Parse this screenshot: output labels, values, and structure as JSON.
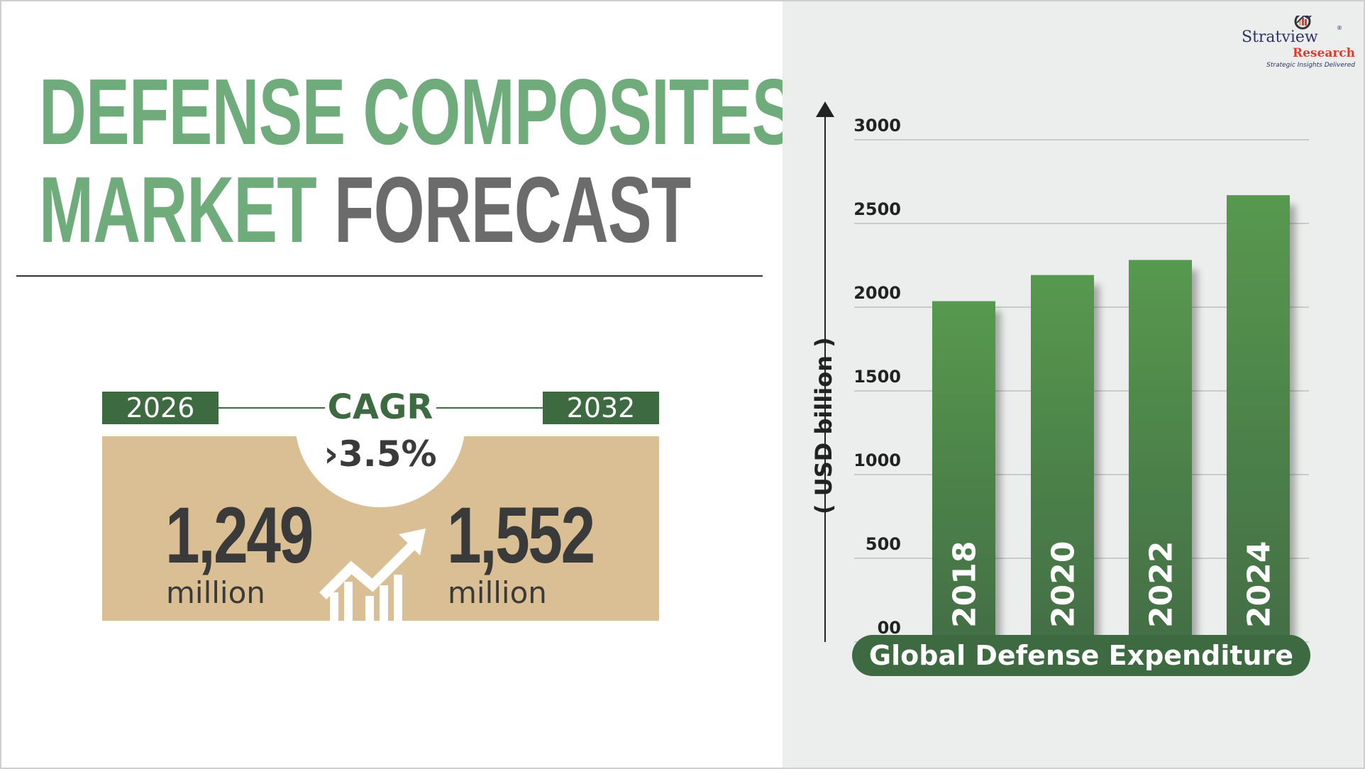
{
  "title": {
    "line1": "DEFENSE COMPOSITES",
    "line2_green": "MARKET",
    "line2_gray": "FORECAST"
  },
  "forecast": {
    "start_year": "2026",
    "end_year": "2032",
    "cagr_label": "CAGR",
    "cagr_value": "›3.5%",
    "start_value": "1,249",
    "start_unit": "million",
    "end_value": "1,552",
    "end_unit": "million"
  },
  "logo": {
    "name": "Stratview",
    "sub": "Research",
    "tagline": "Strategic Insights Delivered",
    "registered": "®"
  },
  "colors": {
    "title_green": "#6fab7b",
    "title_gray": "#6b6b6b",
    "dark_green": "#3e6a41",
    "tan": "#d9bf93",
    "bar_top": "#57994f",
    "bar_bottom": "#436e45"
  },
  "chart_data": {
    "type": "bar",
    "title": "Global Defense Expenditure",
    "ylabel": "( USD billion )",
    "categories": [
      "2018",
      "2020",
      "2022",
      "2024"
    ],
    "values": [
      2036,
      2192,
      2282,
      2669
    ],
    "ylim": [
      0,
      3000
    ],
    "yticks": [
      0,
      500,
      1000,
      1500,
      2000,
      2500,
      3000
    ],
    "ytick_labels": [
      "00",
      "500",
      "1000",
      "1500",
      "2000",
      "2500",
      "3000"
    ],
    "grid": true,
    "legend": "none"
  }
}
